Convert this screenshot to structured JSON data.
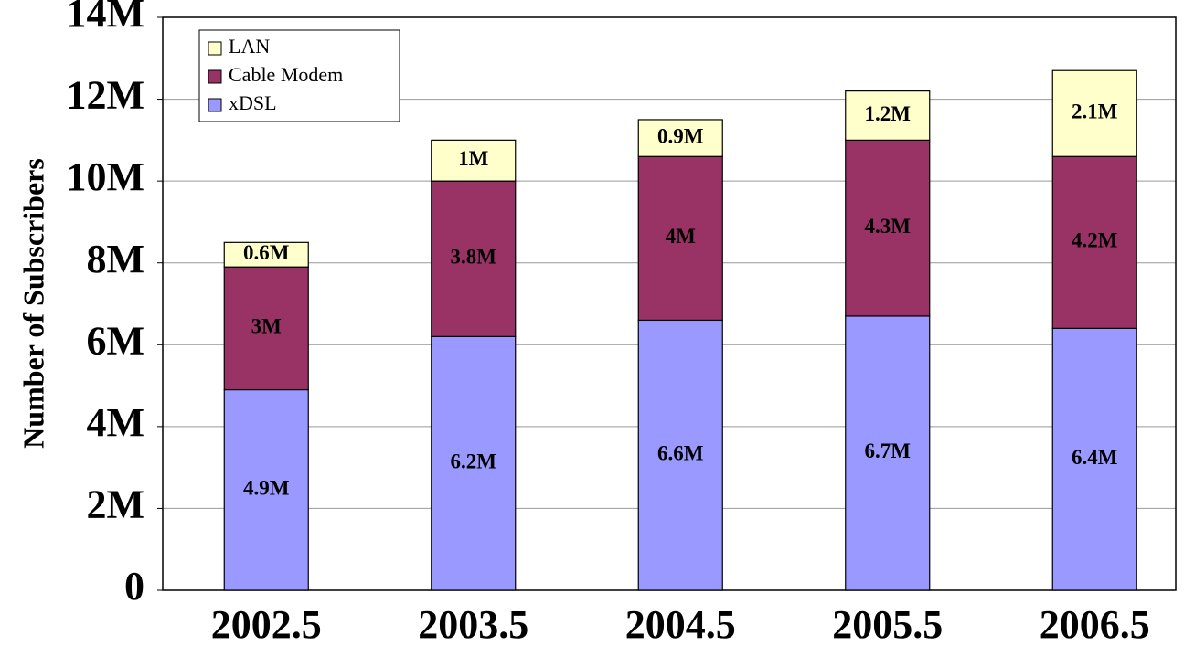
{
  "chart_data": {
    "type": "stacked-bar",
    "y_label": "Number of Subscribers",
    "categories": [
      "2002.5",
      "2003.5",
      "2004.5",
      "2005.5",
      "2006.5"
    ],
    "series": [
      {
        "name": "xDSL",
        "color": "#9999ff",
        "values": [
          4900000,
          6200000,
          6600000,
          6700000,
          6400000
        ],
        "value_labels": [
          "4.9M",
          "6.2M",
          "6.6M",
          "6.7M",
          "6.4M"
        ]
      },
      {
        "name": "Cable Modem",
        "color": "#993366",
        "values": [
          3000000,
          3800000,
          4000000,
          4300000,
          4200000
        ],
        "value_labels": [
          "3M",
          "3.8M",
          "4M",
          "4.3M",
          "4.2M"
        ]
      },
      {
        "name": "LAN",
        "color": "#ffffcc",
        "values": [
          600000,
          1000000,
          900000,
          1200000,
          2100000
        ],
        "value_labels": [
          "0.6M",
          "1M",
          "0.9M",
          "1.2M",
          "2.1M"
        ]
      }
    ],
    "ylim": [
      0,
      14000000
    ],
    "yticks": [
      0,
      {
        "value": 2000000,
        "label": "2M"
      },
      {
        "value": 4000000,
        "label": "4M"
      },
      {
        "value": 6000000,
        "label": "6M"
      },
      {
        "value": 8000000,
        "label": "8M"
      },
      {
        "value": 10000000,
        "label": "10M"
      },
      {
        "value": 12000000,
        "label": "12M"
      },
      {
        "value": 14000000,
        "label": "14M"
      }
    ],
    "grid": true,
    "legend": "upper-left"
  }
}
